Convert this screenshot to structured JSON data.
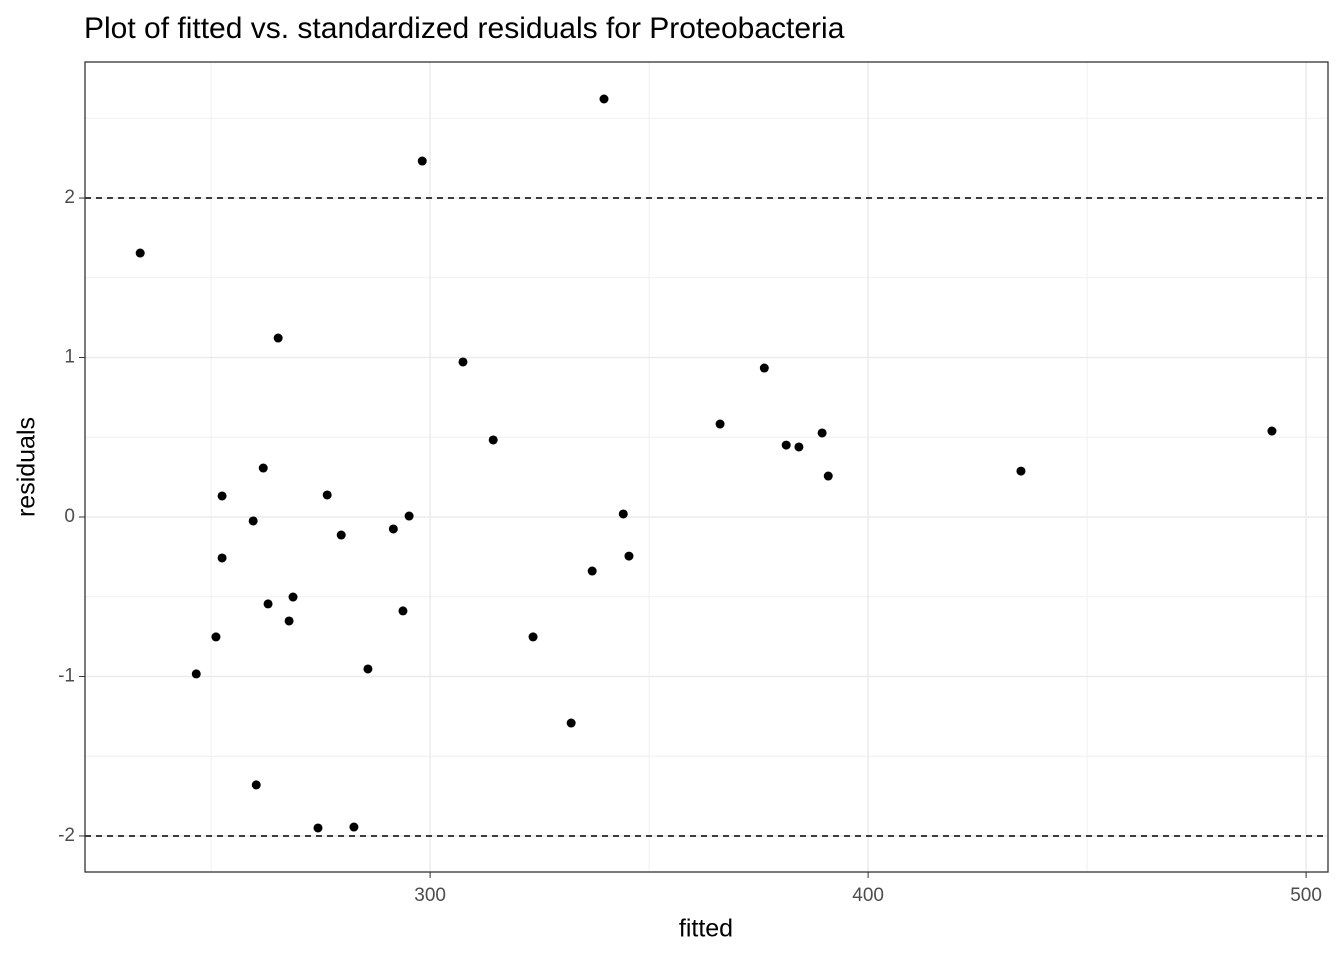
{
  "chart_data": {
    "type": "scatter",
    "title": "Plot of fitted vs. standardized residuals for Proteobacteria",
    "x_label": "fitted",
    "y_label": "residuals",
    "xlim": [
      221.2,
      505.0
    ],
    "ylim": [
      -2.226,
      2.853
    ],
    "xticks": [
      300,
      400,
      500
    ],
    "yticks": [
      -2,
      -1,
      0,
      1,
      2
    ],
    "minor_xticks": [
      250,
      350,
      450
    ],
    "minor_yticks": [
      -1.5,
      -0.5,
      0.5,
      1.5,
      2.5
    ],
    "hlines": [
      2,
      -2
    ],
    "grid": true,
    "series": [
      {
        "color": "#000000",
        "x": [
          233.8,
          246.6,
          251.1,
          252.5,
          252.5,
          259.6,
          260.3,
          261.9,
          263.0,
          265.3,
          267.8,
          268.7,
          274.4,
          276.5,
          279.7,
          282.6,
          285.8,
          291.6,
          293.8,
          295.2,
          298.2,
          307.5,
          314.4,
          323.5,
          332.2,
          337.0,
          339.7,
          344.1,
          345.4,
          366.2,
          376.3,
          381.3,
          384.2,
          389.5,
          390.9,
          434.9,
          492.2
        ],
        "values": [
          1.655,
          -0.984,
          -0.752,
          0.132,
          -0.257,
          -0.025,
          -1.68,
          0.307,
          -0.545,
          1.122,
          -0.652,
          -0.502,
          -1.95,
          0.138,
          -0.113,
          -1.944,
          -0.953,
          -0.075,
          -0.589,
          0.006,
          2.232,
          0.972,
          0.483,
          -0.752,
          -1.292,
          -0.339,
          2.621,
          0.019,
          -0.245,
          0.583,
          0.934,
          0.451,
          0.439,
          0.527,
          0.257,
          0.288,
          0.539
        ]
      }
    ]
  }
}
